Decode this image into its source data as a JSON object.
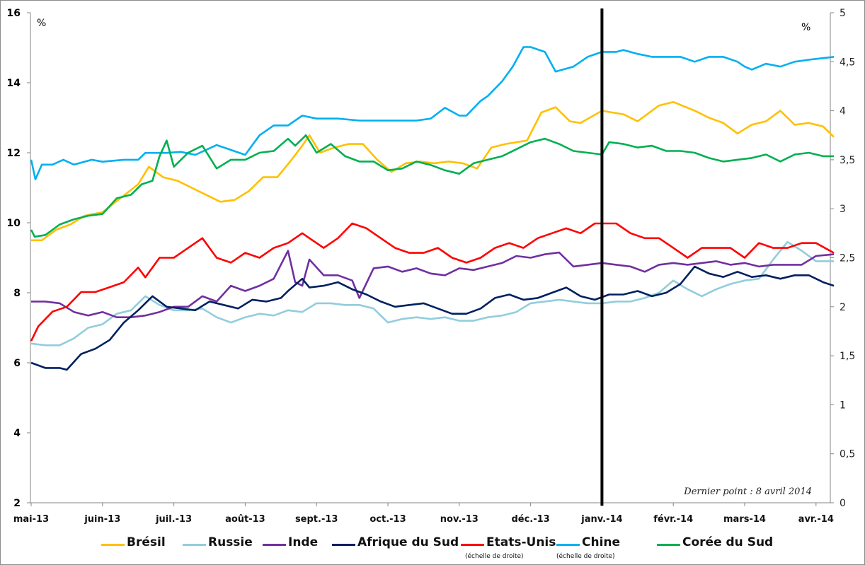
{
  "chart_data": {
    "type": "line",
    "title": "",
    "note": "Dernier point : 8 avril 2014",
    "xlabel": "",
    "ylabel_left": "%",
    "ylabel_right": "%",
    "x_unit": "months since 1 May 2013",
    "x_range": [
      0,
      11.25
    ],
    "x_ticks": [
      {
        "label": "mai-13",
        "x": 0
      },
      {
        "label": "juin-13",
        "x": 1
      },
      {
        "label": "juil.-13",
        "x": 2
      },
      {
        "label": "août-13",
        "x": 3
      },
      {
        "label": "sept.-13",
        "x": 4
      },
      {
        "label": "oct.-13",
        "x": 5
      },
      {
        "label": "nov.-13",
        "x": 6
      },
      {
        "label": "déc.-13",
        "x": 7
      },
      {
        "label": "janv.-14",
        "x": 8
      },
      {
        "label": "févr.-14",
        "x": 9
      },
      {
        "label": "mars-14",
        "x": 10
      },
      {
        "label": "avr.-14",
        "x": 11
      }
    ],
    "ylim_left": [
      2,
      16
    ],
    "yticks_left": [
      "2",
      "4",
      "6",
      "8",
      "10",
      "12",
      "14",
      "16"
    ],
    "yticks_left_values": [
      2,
      4,
      6,
      8,
      10,
      12,
      14,
      16
    ],
    "ylim_right": [
      0,
      5
    ],
    "yticks_right": [
      "0",
      "0,5",
      "1",
      "1,5",
      "2",
      "2,5",
      "3",
      "3,5",
      "4",
      "4,5",
      "5"
    ],
    "yticks_right_values": [
      0,
      0.5,
      1,
      1.5,
      2,
      2.5,
      3,
      3.5,
      4,
      4.5,
      5
    ],
    "vertical_marker": {
      "x": 8,
      "label": "janv.-14"
    },
    "grid": false,
    "legend_position": "bottom",
    "series": [
      {
        "name": "Brésil",
        "axis": "left",
        "color": "#FFC000",
        "sublabel": "",
        "x": [
          0,
          0.15,
          0.35,
          0.55,
          0.75,
          1.0,
          1.25,
          1.5,
          1.65,
          1.85,
          2.05,
          2.25,
          2.45,
          2.65,
          2.85,
          3.05,
          3.25,
          3.45,
          3.65,
          3.8,
          3.9,
          4.05,
          4.25,
          4.45,
          4.65,
          4.85,
          5.05,
          5.25,
          5.45,
          5.65,
          5.85,
          6.05,
          6.25,
          6.45,
          6.65,
          6.95,
          7.15,
          7.35,
          7.55,
          7.7,
          8.0,
          8.3,
          8.5,
          8.8,
          9.0,
          9.3,
          9.5,
          9.7,
          9.9,
          10.1,
          10.3,
          10.5,
          10.7,
          10.9,
          11.1,
          11.25
        ],
        "values": [
          9.5,
          9.5,
          9.8,
          9.95,
          10.2,
          10.3,
          10.7,
          11.1,
          11.6,
          11.3,
          11.2,
          11.0,
          10.8,
          10.6,
          10.65,
          10.9,
          11.3,
          11.3,
          11.8,
          12.2,
          12.5,
          12.0,
          12.15,
          12.25,
          12.25,
          11.8,
          11.45,
          11.7,
          11.75,
          11.7,
          11.75,
          11.7,
          11.55,
          12.15,
          12.25,
          12.35,
          13.15,
          13.3,
          12.9,
          12.85,
          13.2,
          13.1,
          12.9,
          13.35,
          13.45,
          13.2,
          13.0,
          12.85,
          12.55,
          12.8,
          12.9,
          13.2,
          12.8,
          12.85,
          12.75,
          12.45
        ]
      },
      {
        "name": "Russie",
        "axis": "left",
        "color": "#92CDDC",
        "sublabel": "",
        "x": [
          0,
          0.2,
          0.4,
          0.6,
          0.8,
          1.0,
          1.2,
          1.4,
          1.6,
          1.8,
          2.0,
          2.2,
          2.4,
          2.6,
          2.8,
          3.0,
          3.2,
          3.4,
          3.6,
          3.8,
          4.0,
          4.2,
          4.4,
          4.6,
          4.8,
          5.0,
          5.2,
          5.4,
          5.6,
          5.8,
          6.0,
          6.2,
          6.4,
          6.6,
          6.8,
          7.0,
          7.2,
          7.4,
          7.6,
          7.8,
          8.0,
          8.2,
          8.4,
          8.6,
          8.8,
          9.0,
          9.2,
          9.4,
          9.6,
          9.8,
          10.0,
          10.2,
          10.4,
          10.6,
          10.8,
          11.0,
          11.25
        ],
        "values": [
          6.55,
          6.5,
          6.5,
          6.7,
          7.0,
          7.1,
          7.4,
          7.5,
          7.9,
          7.65,
          7.5,
          7.5,
          7.55,
          7.3,
          7.15,
          7.3,
          7.4,
          7.35,
          7.5,
          7.45,
          7.7,
          7.7,
          7.65,
          7.65,
          7.55,
          7.15,
          7.25,
          7.3,
          7.25,
          7.3,
          7.2,
          7.2,
          7.3,
          7.35,
          7.45,
          7.7,
          7.75,
          7.8,
          7.75,
          7.7,
          7.7,
          7.75,
          7.75,
          7.85,
          8.0,
          8.35,
          8.1,
          7.9,
          8.1,
          8.25,
          8.35,
          8.4,
          8.95,
          9.45,
          9.2,
          8.9,
          8.9
        ]
      },
      {
        "name": "Inde",
        "axis": "left",
        "color": "#7030A0",
        "sublabel": "",
        "x": [
          0,
          0.2,
          0.4,
          0.6,
          0.8,
          1.0,
          1.2,
          1.4,
          1.6,
          1.8,
          2.0,
          2.2,
          2.4,
          2.6,
          2.8,
          3.0,
          3.2,
          3.4,
          3.6,
          3.7,
          3.8,
          3.9,
          4.1,
          4.3,
          4.5,
          4.6,
          4.8,
          5.0,
          5.2,
          5.4,
          5.6,
          5.8,
          6.0,
          6.2,
          6.4,
          6.6,
          6.8,
          7.0,
          7.2,
          7.4,
          7.6,
          7.8,
          8.0,
          8.2,
          8.4,
          8.6,
          8.8,
          9.0,
          9.2,
          9.4,
          9.6,
          9.8,
          10.0,
          10.2,
          10.4,
          10.6,
          10.8,
          11.0,
          11.25
        ],
        "values": [
          7.75,
          7.75,
          7.7,
          7.45,
          7.35,
          7.45,
          7.3,
          7.3,
          7.35,
          7.45,
          7.6,
          7.6,
          7.9,
          7.75,
          8.2,
          8.05,
          8.2,
          8.4,
          9.2,
          8.3,
          8.2,
          8.95,
          8.5,
          8.5,
          8.35,
          7.85,
          8.7,
          8.75,
          8.6,
          8.7,
          8.55,
          8.5,
          8.7,
          8.65,
          8.75,
          8.85,
          9.05,
          9.0,
          9.1,
          9.15,
          8.75,
          8.8,
          8.85,
          8.8,
          8.75,
          8.6,
          8.8,
          8.85,
          8.8,
          8.85,
          8.9,
          8.8,
          8.85,
          8.75,
          8.8,
          8.8,
          8.8,
          9.05,
          9.1
        ]
      },
      {
        "name": "Afrique du Sud",
        "axis": "left",
        "color": "#002060",
        "sublabel": "",
        "x": [
          0,
          0.2,
          0.4,
          0.5,
          0.7,
          0.9,
          1.1,
          1.3,
          1.5,
          1.7,
          1.9,
          2.1,
          2.3,
          2.5,
          2.7,
          2.9,
          3.1,
          3.3,
          3.5,
          3.6,
          3.8,
          3.9,
          4.1,
          4.3,
          4.5,
          4.7,
          4.9,
          5.1,
          5.3,
          5.5,
          5.7,
          5.9,
          6.1,
          6.3,
          6.5,
          6.7,
          6.9,
          7.1,
          7.3,
          7.5,
          7.7,
          7.9,
          8.1,
          8.3,
          8.5,
          8.7,
          8.9,
          9.1,
          9.3,
          9.5,
          9.7,
          9.9,
          10.1,
          10.3,
          10.5,
          10.7,
          10.9,
          11.1,
          11.25
        ],
        "values": [
          6.0,
          5.85,
          5.85,
          5.8,
          6.25,
          6.4,
          6.65,
          7.15,
          7.5,
          7.9,
          7.6,
          7.55,
          7.5,
          7.75,
          7.65,
          7.55,
          7.8,
          7.75,
          7.85,
          8.05,
          8.4,
          8.15,
          8.2,
          8.3,
          8.1,
          7.95,
          7.75,
          7.6,
          7.65,
          7.7,
          7.55,
          7.4,
          7.4,
          7.55,
          7.85,
          7.95,
          7.8,
          7.85,
          8.0,
          8.15,
          7.9,
          7.8,
          7.95,
          7.95,
          8.05,
          7.9,
          8.0,
          8.25,
          8.75,
          8.55,
          8.45,
          8.6,
          8.45,
          8.5,
          8.4,
          8.5,
          8.5,
          8.3,
          8.2
        ]
      },
      {
        "name": "Etats-Unis",
        "axis": "right",
        "color": "#FF0000",
        "sublabel": "(échelle de droite)",
        "x": [
          0,
          0.1,
          0.3,
          0.5,
          0.7,
          0.9,
          1.1,
          1.3,
          1.5,
          1.6,
          1.8,
          2.0,
          2.2,
          2.4,
          2.6,
          2.8,
          3.0,
          3.2,
          3.4,
          3.6,
          3.8,
          3.9,
          4.1,
          4.3,
          4.5,
          4.7,
          4.9,
          5.1,
          5.3,
          5.5,
          5.7,
          5.9,
          6.1,
          6.3,
          6.5,
          6.7,
          6.9,
          7.1,
          7.3,
          7.5,
          7.7,
          7.9,
          8.0,
          8.2,
          8.4,
          8.6,
          8.8,
          9.0,
          9.2,
          9.4,
          9.6,
          9.8,
          10.0,
          10.2,
          10.4,
          10.6,
          10.8,
          11.0,
          11.25
        ],
        "values": [
          1.65,
          1.8,
          1.95,
          2.0,
          2.15,
          2.15,
          2.2,
          2.25,
          2.4,
          2.3,
          2.5,
          2.5,
          2.6,
          2.7,
          2.5,
          2.45,
          2.55,
          2.5,
          2.6,
          2.65,
          2.75,
          2.7,
          2.6,
          2.7,
          2.85,
          2.8,
          2.7,
          2.6,
          2.55,
          2.55,
          2.6,
          2.5,
          2.45,
          2.5,
          2.6,
          2.65,
          2.6,
          2.7,
          2.75,
          2.8,
          2.75,
          2.85,
          2.85,
          2.85,
          2.75,
          2.7,
          2.7,
          2.6,
          2.5,
          2.6,
          2.6,
          2.6,
          2.5,
          2.65,
          2.6,
          2.6,
          2.65,
          2.65,
          2.55
        ]
      },
      {
        "name": "Chine",
        "axis": "right",
        "color": "#00B0F0",
        "sublabel": "(échelle de droite)",
        "x": [
          0,
          0.06,
          0.15,
          0.3,
          0.45,
          0.6,
          0.85,
          1.0,
          1.3,
          1.5,
          1.6,
          1.9,
          2.1,
          2.3,
          2.6,
          2.8,
          3.0,
          3.2,
          3.4,
          3.6,
          3.8,
          4.0,
          4.3,
          4.6,
          4.9,
          5.2,
          5.4,
          5.6,
          5.8,
          6.0,
          6.1,
          6.3,
          6.4,
          6.6,
          6.75,
          6.9,
          7.0,
          7.2,
          7.35,
          7.6,
          7.8,
          8.0,
          8.2,
          8.3,
          8.5,
          8.7,
          8.9,
          9.1,
          9.3,
          9.5,
          9.7,
          9.9,
          10.0,
          10.1,
          10.3,
          10.5,
          10.7,
          10.9,
          11.25
        ],
        "values": [
          3.5,
          3.3,
          3.45,
          3.45,
          3.5,
          3.45,
          3.5,
          3.48,
          3.5,
          3.5,
          3.57,
          3.57,
          3.58,
          3.55,
          3.65,
          3.6,
          3.55,
          3.75,
          3.85,
          3.85,
          3.95,
          3.92,
          3.92,
          3.9,
          3.9,
          3.9,
          3.9,
          3.92,
          4.03,
          3.95,
          3.95,
          4.1,
          4.15,
          4.3,
          4.45,
          4.65,
          4.65,
          4.6,
          4.4,
          4.45,
          4.55,
          4.6,
          4.6,
          4.62,
          4.58,
          4.55,
          4.55,
          4.55,
          4.5,
          4.55,
          4.55,
          4.5,
          4.45,
          4.42,
          4.48,
          4.45,
          4.5,
          4.52,
          4.55
        ]
      },
      {
        "name": "Corée du Sud",
        "axis": "left",
        "color": "#00B050",
        "sublabel": "",
        "x": [
          0,
          0.05,
          0.2,
          0.4,
          0.6,
          0.8,
          1.0,
          1.2,
          1.4,
          1.55,
          1.7,
          1.8,
          1.9,
          2.0,
          2.2,
          2.4,
          2.6,
          2.8,
          3.0,
          3.2,
          3.4,
          3.6,
          3.7,
          3.85,
          4.0,
          4.2,
          4.4,
          4.6,
          4.8,
          5.0,
          5.2,
          5.4,
          5.6,
          5.8,
          6.0,
          6.2,
          6.4,
          6.6,
          6.8,
          7.0,
          7.2,
          7.4,
          7.6,
          7.8,
          8.0,
          8.1,
          8.3,
          8.5,
          8.7,
          8.9,
          9.1,
          9.3,
          9.5,
          9.7,
          9.9,
          10.1,
          10.3,
          10.5,
          10.7,
          10.9,
          11.1,
          11.25
        ],
        "values": [
          9.8,
          9.6,
          9.65,
          9.95,
          10.1,
          10.2,
          10.25,
          10.7,
          10.8,
          11.1,
          11.2,
          11.9,
          12.35,
          11.6,
          12.0,
          12.2,
          11.55,
          11.8,
          11.8,
          12.0,
          12.05,
          12.4,
          12.2,
          12.5,
          12.0,
          12.25,
          11.9,
          11.75,
          11.75,
          11.5,
          11.55,
          11.75,
          11.65,
          11.5,
          11.4,
          11.7,
          11.8,
          11.9,
          12.1,
          12.3,
          12.4,
          12.25,
          12.05,
          12.0,
          11.95,
          12.3,
          12.25,
          12.15,
          12.2,
          12.05,
          12.05,
          12.0,
          11.85,
          11.75,
          11.8,
          11.85,
          11.95,
          11.75,
          11.95,
          12.0,
          11.9,
          11.9
        ]
      }
    ]
  }
}
